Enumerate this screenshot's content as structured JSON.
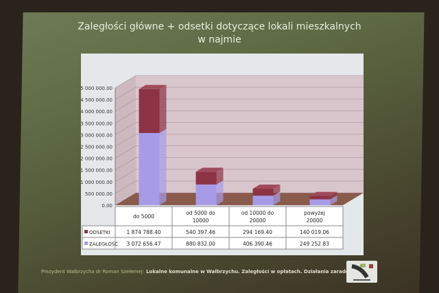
{
  "slide": {
    "title_line1": "Zaległości główne + odsetki dotyczące lokali mieszkalnych",
    "title_line2": "w najmie",
    "footer_author": "Prezydent Wałbrzycha dr Roman Szełemej:",
    "footer_text": "Lokalne komunalne w Wałbrzychu. Zaległości w opłatach. Działania zaradcze",
    "logo_text": "WAŁBRZYCH"
  },
  "chart_data": {
    "type": "bar",
    "stacked": true,
    "three_d": true,
    "categories": [
      "do 5000",
      "od 5000 do 10000",
      "od 10000 do 20000",
      "powyżej 20000"
    ],
    "series": [
      {
        "name": "ZALEGŁOŚĆ",
        "values": [
          3072656.47,
          880832.0,
          406390.46,
          249252.83
        ],
        "labels": [
          "3 072 656.47",
          "880 832.00",
          "406 390.46",
          "249 252.83"
        ],
        "color": "#a79be8"
      },
      {
        "name": "ODSETKI",
        "values": [
          1874788.4,
          540397.46,
          294169.4,
          140019.06
        ],
        "labels": [
          "1 874 788.40",
          "540 397.46",
          "294 169.40",
          "140 019.06"
        ],
        "color": "#8c3346"
      }
    ],
    "ylim": [
      0,
      5000000
    ],
    "yticks": [
      "0.00",
      "500 000.00",
      "1 000 000.00",
      "1 500 000.00",
      "2 000 000.00",
      "2 500 000.00",
      "3 000 000.00",
      "3 500 000.00",
      "4 000 000.00",
      "4 500 000.00",
      "5 000 000.00"
    ],
    "grid": true,
    "legend": "data-table"
  }
}
